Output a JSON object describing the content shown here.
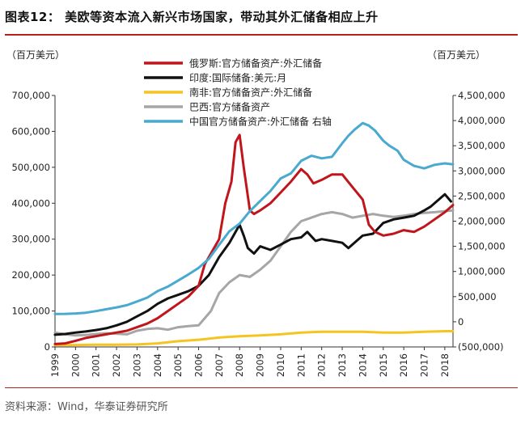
{
  "figure_title": "图表12：  美欧等资本流入新兴市场国家，带动其外汇储备相应上升",
  "source_note": "资料来源：Wind，华泰证券研究所",
  "chart_data": {
    "type": "line",
    "left_unit": "（百万美元）",
    "right_unit": "（百万美元）",
    "xlim": [
      1999,
      2018.4
    ],
    "ylim_left": [
      0,
      700000
    ],
    "ylim_right": [
      -500000,
      4500000
    ],
    "x_ticks": [
      "1999",
      "2000",
      "2001",
      "2002",
      "2003",
      "2004",
      "2005",
      "2006",
      "2007",
      "2008",
      "2009",
      "2010",
      "2011",
      "2012",
      "2013",
      "2014",
      "2015",
      "2016",
      "2017",
      "2018"
    ],
    "y_ticks_left": [
      "0",
      "100,000",
      "200,000",
      "300,000",
      "400,000",
      "500,000",
      "600,000",
      "700,000"
    ],
    "y_ticks_right": [
      "(500,000)",
      "0",
      "500,000",
      "1,000,000",
      "1,500,000",
      "2,000,000",
      "2,500,000",
      "3,000,000",
      "3,500,000",
      "4,000,000",
      "4,500,000"
    ],
    "series": [
      {
        "name": "俄罗斯:官方储备资产:外汇储备",
        "color": "#c0161b",
        "axis": "left",
        "x": [
          1999,
          1999.5,
          2000,
          2000.5,
          2001,
          2001.5,
          2002,
          2002.5,
          2003,
          2003.5,
          2004,
          2004.5,
          2005,
          2005.5,
          2006,
          2006.3,
          2006.6,
          2007,
          2007.3,
          2007.6,
          2007.8,
          2008,
          2008.2,
          2008.5,
          2008.7,
          2009,
          2009.5,
          2010,
          2010.5,
          2011,
          2011.3,
          2011.6,
          2012,
          2012.5,
          2013,
          2013.5,
          2014,
          2014.3,
          2014.6,
          2015,
          2015.5,
          2016,
          2016.5,
          2017,
          2017.5,
          2018,
          2018.4
        ],
        "values": [
          8000,
          10000,
          17000,
          25000,
          30000,
          35000,
          40000,
          45000,
          55000,
          65000,
          80000,
          100000,
          120000,
          140000,
          170000,
          230000,
          260000,
          300000,
          400000,
          460000,
          570000,
          590000,
          500000,
          380000,
          370000,
          380000,
          400000,
          430000,
          460000,
          495000,
          480000,
          455000,
          465000,
          480000,
          480000,
          445000,
          410000,
          340000,
          320000,
          310000,
          315000,
          325000,
          320000,
          335000,
          355000,
          375000,
          395000
        ]
      },
      {
        "name": "印度:国际储备:美元:月",
        "color": "#111111",
        "axis": "left",
        "x": [
          1999,
          1999.5,
          2000,
          2000.5,
          2001,
          2001.5,
          2002,
          2002.5,
          2003,
          2003.5,
          2004,
          2004.5,
          2005,
          2005.5,
          2006,
          2006.5,
          2007,
          2007.5,
          2008,
          2008.2,
          2008.4,
          2008.7,
          2009,
          2009.5,
          2010,
          2010.5,
          2011,
          2011.3,
          2011.7,
          2012,
          2012.5,
          2013,
          2013.3,
          2013.7,
          2014,
          2014.5,
          2015,
          2015.5,
          2016,
          2016.5,
          2017,
          2017.3,
          2017.6,
          2018,
          2018.3
        ],
        "values": [
          34000,
          36000,
          40000,
          43000,
          47000,
          52000,
          60000,
          70000,
          85000,
          100000,
          120000,
          135000,
          145000,
          155000,
          170000,
          200000,
          250000,
          290000,
          340000,
          310000,
          275000,
          260000,
          280000,
          270000,
          285000,
          300000,
          305000,
          320000,
          295000,
          300000,
          295000,
          290000,
          275000,
          295000,
          310000,
          315000,
          345000,
          355000,
          360000,
          365000,
          380000,
          390000,
          405000,
          425000,
          405000
        ]
      },
      {
        "name": "南非:官方储备资产:外汇储备",
        "color": "#f6c421",
        "axis": "left",
        "x": [
          1999,
          2000,
          2001,
          2002,
          2003,
          2004,
          2005,
          2006,
          2007,
          2008,
          2009,
          2010,
          2011,
          2012,
          2013,
          2014,
          2015,
          2016,
          2017,
          2018,
          2018.4
        ],
        "values": [
          5000,
          5500,
          6000,
          6000,
          7000,
          10000,
          16000,
          20000,
          26000,
          30000,
          32000,
          35000,
          40000,
          42000,
          42000,
          42000,
          40000,
          40000,
          42000,
          44000,
          44000
        ]
      },
      {
        "name": "巴西:官方储备资产",
        "color": "#a6a6a6",
        "axis": "left",
        "x": [
          1999,
          1999.5,
          2000,
          2000.5,
          2001,
          2001.5,
          2002,
          2002.5,
          2003,
          2003.5,
          2004,
          2004.5,
          2005,
          2005.5,
          2006,
          2006.3,
          2006.6,
          2007,
          2007.5,
          2008,
          2008.5,
          2009,
          2009.5,
          2010,
          2010.5,
          2011,
          2011.5,
          2012,
          2012.5,
          2013,
          2013.5,
          2014,
          2014.5,
          2015,
          2015.5,
          2016,
          2016.5,
          2017,
          2017.5,
          2018,
          2018.4
        ],
        "values": [
          40000,
          35000,
          32000,
          33000,
          36000,
          38000,
          37000,
          35000,
          45000,
          50000,
          52000,
          48000,
          55000,
          58000,
          60000,
          80000,
          100000,
          150000,
          180000,
          200000,
          195000,
          215000,
          240000,
          280000,
          320000,
          350000,
          360000,
          370000,
          375000,
          370000,
          360000,
          365000,
          370000,
          365000,
          362000,
          365000,
          370000,
          373000,
          375000,
          378000,
          380000
        ]
      },
      {
        "name": "中国官方储备资产:外汇储备 右轴",
        "color": "#4aa9cf",
        "axis": "right",
        "x": [
          1999,
          1999.5,
          2000,
          2000.5,
          2001,
          2001.5,
          2002,
          2002.5,
          2003,
          2003.5,
          2004,
          2004.5,
          2005,
          2005.5,
          2006,
          2006.5,
          2007,
          2007.5,
          2008,
          2008.5,
          2009,
          2009.5,
          2010,
          2010.5,
          2011,
          2011.5,
          2012,
          2012.5,
          2013,
          2013.3,
          2013.6,
          2014,
          2014.3,
          2014.6,
          2015,
          2015.3,
          2015.7,
          2016,
          2016.5,
          2017,
          2017.5,
          2018,
          2018.4
        ],
        "values": [
          155000,
          158000,
          165000,
          180000,
          212000,
          250000,
          286000,
          330000,
          403000,
          480000,
          610000,
          700000,
          820000,
          940000,
          1070000,
          1250000,
          1530000,
          1800000,
          1950000,
          2200000,
          2400000,
          2600000,
          2850000,
          2950000,
          3200000,
          3300000,
          3250000,
          3280000,
          3550000,
          3700000,
          3820000,
          3950000,
          3900000,
          3800000,
          3600000,
          3500000,
          3400000,
          3220000,
          3100000,
          3050000,
          3120000,
          3150000,
          3130000
        ]
      }
    ]
  }
}
